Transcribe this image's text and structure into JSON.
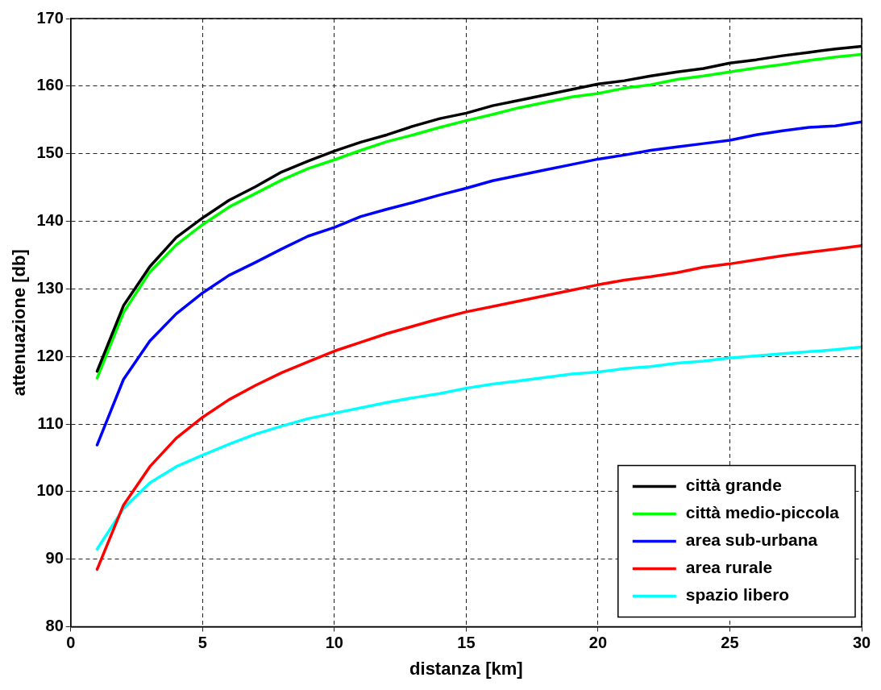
{
  "chart_data": {
    "type": "line",
    "xlabel": "distanza [km]",
    "ylabel": "attenuazione [db]",
    "x": [
      1,
      2,
      3,
      4,
      5,
      6,
      7,
      8,
      9,
      10,
      11,
      12,
      13,
      14,
      15,
      16,
      17,
      18,
      19,
      20,
      21,
      22,
      23,
      24,
      25,
      26,
      27,
      28,
      29,
      30
    ],
    "xlim": [
      0,
      30
    ],
    "xticks": [
      0,
      5,
      10,
      15,
      20,
      25,
      30
    ],
    "ylim": [
      80,
      170
    ],
    "yticks": [
      80,
      90,
      100,
      110,
      120,
      130,
      140,
      150,
      160,
      170
    ],
    "grid": true,
    "legend": "bottom right",
    "line_style": "solid",
    "marker": "none",
    "series": [
      {
        "name": "città grande",
        "color": "#000000",
        "values": [
          117.8,
          127.5,
          133.3,
          137.6,
          140.5,
          143.1,
          145.1,
          147.3,
          148.9,
          150.4,
          151.7,
          152.8,
          154.1,
          155.2,
          156.0,
          157.1,
          157.9,
          158.7,
          159.5,
          160.3,
          160.8,
          161.5,
          162.1,
          162.6,
          163.4,
          163.9,
          164.5,
          165.0,
          165.5,
          165.9
        ]
      },
      {
        "name": "città medio-piccola",
        "color": "#00ff00",
        "values": [
          116.8,
          126.5,
          132.5,
          136.5,
          139.5,
          142.1,
          144.1,
          146.1,
          147.8,
          149.1,
          150.5,
          151.8,
          152.8,
          153.9,
          154.9,
          155.8,
          156.8,
          157.6,
          158.4,
          158.9,
          159.7,
          160.2,
          161.0,
          161.5,
          162.1,
          162.7,
          163.2,
          163.8,
          164.3,
          164.7
        ]
      },
      {
        "name": "area sub-urbana",
        "color": "#0000ff",
        "values": [
          106.9,
          116.6,
          122.3,
          126.3,
          129.4,
          132.0,
          133.9,
          135.9,
          137.8,
          139.1,
          140.7,
          141.8,
          142.8,
          143.9,
          144.9,
          146.0,
          146.8,
          147.6,
          148.4,
          149.2,
          149.8,
          150.5,
          151.0,
          151.5,
          152.0,
          152.8,
          153.4,
          153.9,
          154.1,
          154.7
        ]
      },
      {
        "name": "area rurale",
        "color": "#ff0000",
        "values": [
          88.5,
          98.0,
          103.7,
          107.9,
          111.0,
          113.6,
          115.7,
          117.6,
          119.2,
          120.8,
          122.1,
          123.4,
          124.5,
          125.6,
          126.6,
          127.4,
          128.2,
          129.0,
          129.8,
          130.6,
          131.3,
          131.8,
          132.4,
          133.2,
          133.7,
          134.3,
          134.9,
          135.4,
          135.9,
          136.4
        ]
      },
      {
        "name": "spazio libero",
        "color": "#00ffff",
        "values": [
          91.5,
          97.5,
          101.3,
          103.7,
          105.4,
          107.0,
          108.5,
          109.7,
          110.8,
          111.6,
          112.4,
          113.2,
          113.9,
          114.5,
          115.3,
          115.9,
          116.4,
          116.9,
          117.4,
          117.7,
          118.2,
          118.5,
          119.0,
          119.3,
          119.8,
          120.1,
          120.4,
          120.7,
          121.0,
          121.4
        ]
      }
    ]
  }
}
